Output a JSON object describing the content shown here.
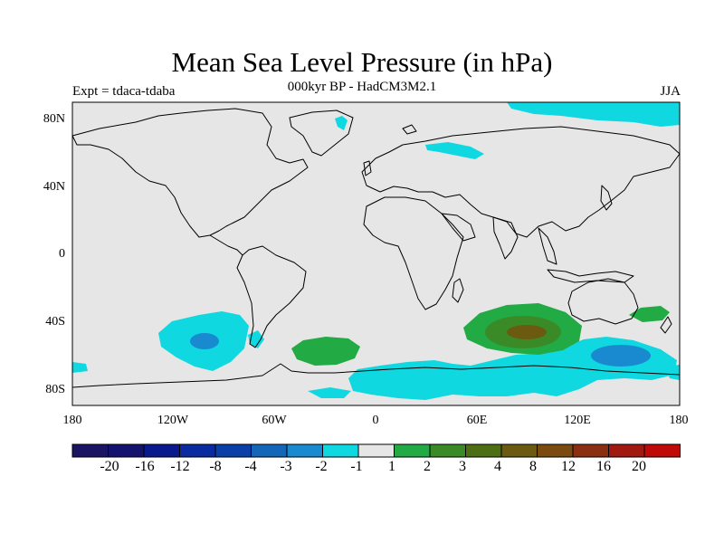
{
  "title": "Mean Sea Level Pressure (in hPa)",
  "subtitle": "000kyr BP - HadCM3M2.1",
  "left_label": "Expt = tdaca-tdaba",
  "right_label": "JJA",
  "lat_labels": [
    "80N",
    "40N",
    "0",
    "40S",
    "80S"
  ],
  "lon_labels": [
    "180",
    "120W",
    "60W",
    "0",
    "60E",
    "120E",
    "180"
  ],
  "colorbar": {
    "colors": [
      "#1b1464",
      "#13126e",
      "#0a1a8c",
      "#0a2aa0",
      "#0a3fa8",
      "#1466b8",
      "#1a8ad0",
      "#10d8e0",
      "#e6e6e6",
      "#22aa44",
      "#3a8a28",
      "#4e6e14",
      "#6b5a10",
      "#7a4a10",
      "#8a3010",
      "#a01a10",
      "#c00a08"
    ],
    "labels": [
      "-20",
      "-16",
      "-12",
      "-8",
      "-4",
      "-3",
      "-2",
      "-1",
      "1",
      "2",
      "3",
      "4",
      "8",
      "12",
      "16",
      "20"
    ]
  },
  "map": {
    "background": "#e6e6e6",
    "contour_colors": {
      "neg1": "#10d8e0",
      "neg2": "#1a8ad0",
      "pos1": "#22aa44",
      "pos2": "#3a8a28",
      "pos3": "#6b5a10"
    }
  }
}
